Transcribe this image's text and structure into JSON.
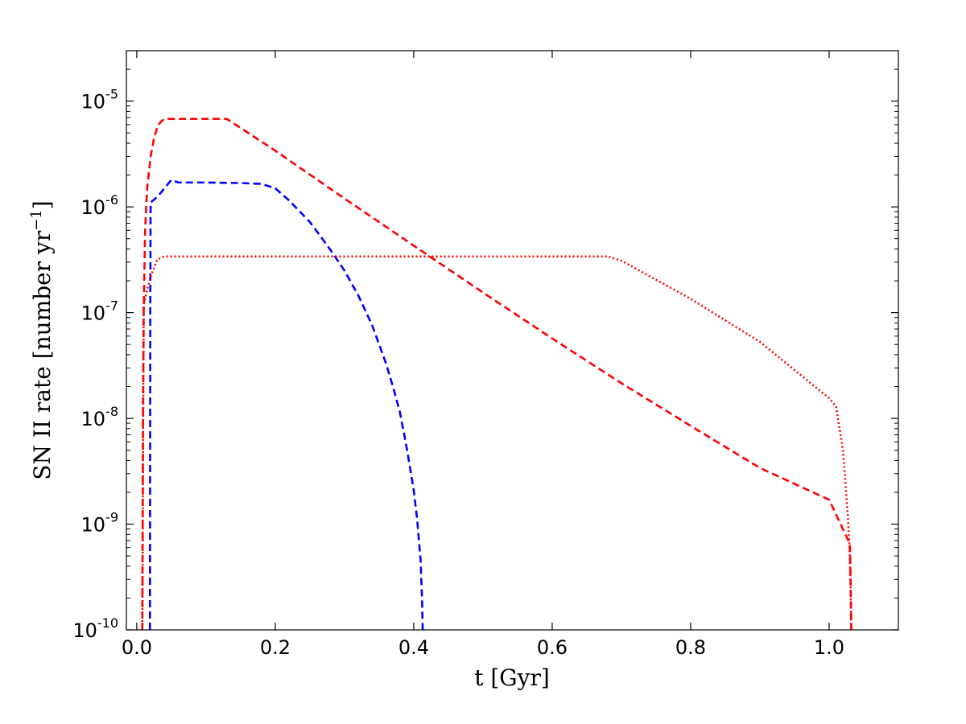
{
  "chart_data": {
    "type": "line",
    "xlabel": "t [Gyr]",
    "ylabel": "SN II rate [number yr",
    "ylabel_sup": "−1",
    "ylabel_close": "]",
    "xlim": [
      -0.015,
      1.1
    ],
    "ylim": [
      1e-10,
      3e-05
    ],
    "yscale": "log",
    "grid": false,
    "legend": "none",
    "x_ticks": [
      {
        "value": 0.0,
        "label": "0.0"
      },
      {
        "value": 0.2,
        "label": "0.2"
      },
      {
        "value": 0.4,
        "label": "0.4"
      },
      {
        "value": 0.6,
        "label": "0.6"
      },
      {
        "value": 0.8,
        "label": "0.8"
      },
      {
        "value": 1.0,
        "label": "1.0"
      }
    ],
    "y_ticks": [
      {
        "value": 1e-10,
        "base": "10",
        "exp": "-10"
      },
      {
        "value": 1e-09,
        "base": "10",
        "exp": "-9"
      },
      {
        "value": 1e-08,
        "base": "10",
        "exp": "-8"
      },
      {
        "value": 1e-07,
        "base": "10",
        "exp": "-7"
      },
      {
        "value": 1e-06,
        "base": "10",
        "exp": "-6"
      },
      {
        "value": 1e-05,
        "base": "10",
        "exp": "-5"
      }
    ],
    "series": [
      {
        "color": "#ff0000",
        "linestyle": "dashed",
        "points": [
          [
            0.008,
            1e-10
          ],
          [
            0.009,
            1e-08
          ],
          [
            0.01,
            1e-07
          ],
          [
            0.012,
            6e-07
          ],
          [
            0.015,
            1.5e-06
          ],
          [
            0.02,
            3e-06
          ],
          [
            0.025,
            4.5e-06
          ],
          [
            0.03,
            5.8e-06
          ],
          [
            0.035,
            6.4e-06
          ],
          [
            0.04,
            6.8e-06
          ],
          [
            0.13,
            6.8e-06
          ],
          [
            0.2,
            3.4e-06
          ],
          [
            0.3,
            1.2e-06
          ],
          [
            0.4,
            4.3e-07
          ],
          [
            0.5,
            1.55e-07
          ],
          [
            0.6,
            5.7e-08
          ],
          [
            0.7,
            2.15e-08
          ],
          [
            0.8,
            8.5e-09
          ],
          [
            0.9,
            3.4e-09
          ],
          [
            1.0,
            1.7e-09
          ],
          [
            1.03,
            6.5e-10
          ],
          [
            1.031,
            3e-10
          ],
          [
            1.032,
            1e-10
          ]
        ]
      },
      {
        "color": "#0000ff",
        "linestyle": "dashed",
        "points": [
          [
            0.019,
            1e-10
          ],
          [
            0.0195,
            1e-07
          ],
          [
            0.02,
            1.1e-06
          ],
          [
            0.03,
            1.25e-06
          ],
          [
            0.04,
            1.5e-06
          ],
          [
            0.05,
            1.8e-06
          ],
          [
            0.06,
            1.7e-06
          ],
          [
            0.1,
            1.7e-06
          ],
          [
            0.15,
            1.68e-06
          ],
          [
            0.18,
            1.65e-06
          ],
          [
            0.2,
            1.5e-06
          ],
          [
            0.22,
            1.15e-06
          ],
          [
            0.25,
            7.2e-07
          ],
          [
            0.28,
            3.9e-07
          ],
          [
            0.3,
            2.5e-07
          ],
          [
            0.32,
            1.45e-07
          ],
          [
            0.34,
            7.6e-08
          ],
          [
            0.36,
            3.3e-08
          ],
          [
            0.37,
            2e-08
          ],
          [
            0.38,
            1.15e-08
          ],
          [
            0.39,
            5.2e-09
          ],
          [
            0.4,
            2.1e-09
          ],
          [
            0.405,
            1.1e-09
          ],
          [
            0.41,
            4.5e-10
          ],
          [
            0.412,
            2e-10
          ],
          [
            0.413,
            1e-10
          ]
        ]
      },
      {
        "color": "#ff0000",
        "linestyle": "dotted",
        "points": [
          [
            0.008,
            1e-10
          ],
          [
            0.01,
            1.2e-07
          ],
          [
            0.02,
            2.2e-07
          ],
          [
            0.03,
            3.2e-07
          ],
          [
            0.04,
            3.4e-07
          ],
          [
            0.68,
            3.4e-07
          ],
          [
            0.7,
            3.1e-07
          ],
          [
            0.8,
            1.35e-07
          ],
          [
            0.9,
            5.3e-08
          ],
          [
            1.0,
            1.55e-08
          ],
          [
            1.01,
            1.3e-08
          ],
          [
            1.02,
            5e-09
          ],
          [
            1.027,
            1.2e-09
          ],
          [
            1.03,
            5e-10
          ],
          [
            1.032,
            1e-10
          ]
        ]
      }
    ]
  }
}
